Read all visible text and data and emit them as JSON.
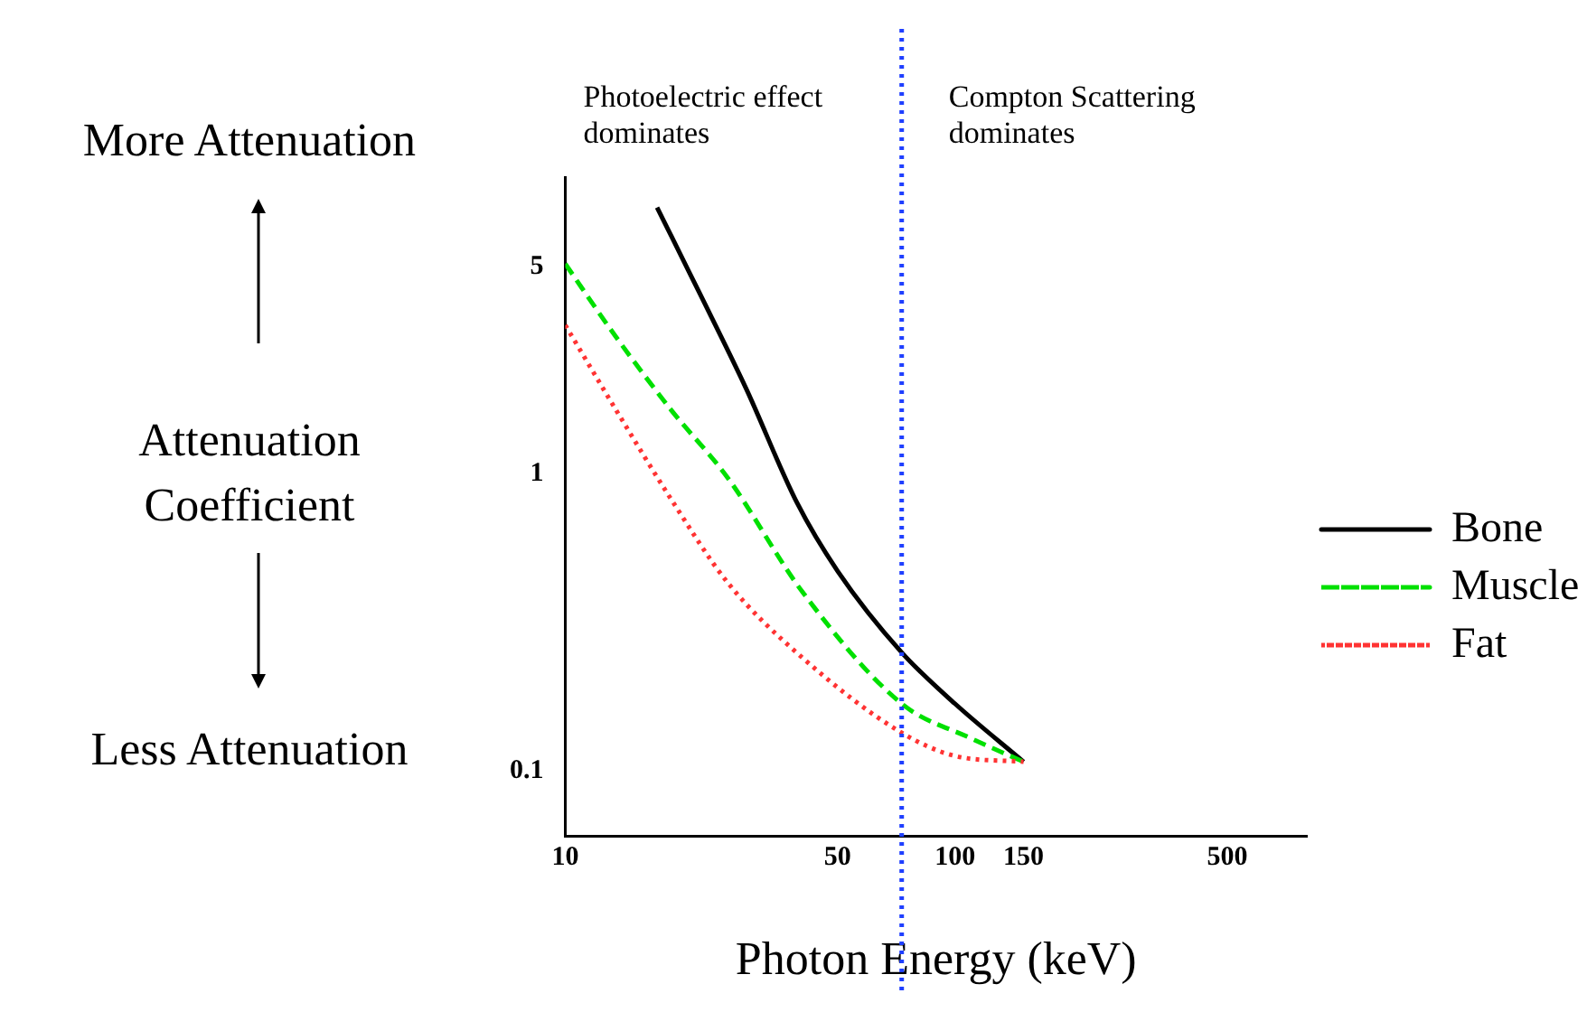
{
  "chart_data": {
    "type": "line",
    "xlabel": "Photon Energy (keV)",
    "ylabel": "Attenuation\nCoefficient",
    "annotations": [
      "Photoelectric effect\ndominates",
      "Compton Scattering\ndominates",
      "More Attenuation",
      "Less Attenuation"
    ],
    "log": "xy",
    "xlim": [
      10,
      800
    ],
    "ylim": [
      0.06,
      10
    ],
    "xticks": [
      10,
      50,
      100,
      150,
      500
    ],
    "yticks": [
      0.1,
      1,
      5
    ],
    "grid": false,
    "legend": "right",
    "marker": "none",
    "ref_lines": [
      {
        "axis": "x",
        "value": 73,
        "color": "#1f3fff",
        "line_style": "dotted"
      }
    ],
    "series": [
      {
        "name": "Bone",
        "color": "#000000",
        "line_style": "solid",
        "x": [
          17.2,
          22.1,
          29.1,
          39.3,
          50,
          73,
          100,
          150
        ],
        "values": [
          7.9,
          4.07,
          1.94,
          0.8,
          0.47,
          0.25,
          0.168,
          0.107
        ]
      },
      {
        "name": "Muscle",
        "color": "#00e000",
        "line_style": "dashed",
        "x": [
          10,
          13.5,
          18.7,
          26.1,
          40.6,
          73,
          109,
          150
        ],
        "values": [
          5.1,
          2.89,
          1.64,
          0.97,
          0.4,
          0.168,
          0.129,
          0.107
        ]
      },
      {
        "name": "Fat",
        "color": "#ff3333",
        "line_style": "dotted",
        "x": [
          10,
          13.5,
          18.7,
          26.1,
          40.6,
          73,
          100,
          150
        ],
        "values": [
          3.17,
          1.64,
          0.82,
          0.43,
          0.24,
          0.134,
          0.112,
          0.107
        ]
      }
    ]
  }
}
